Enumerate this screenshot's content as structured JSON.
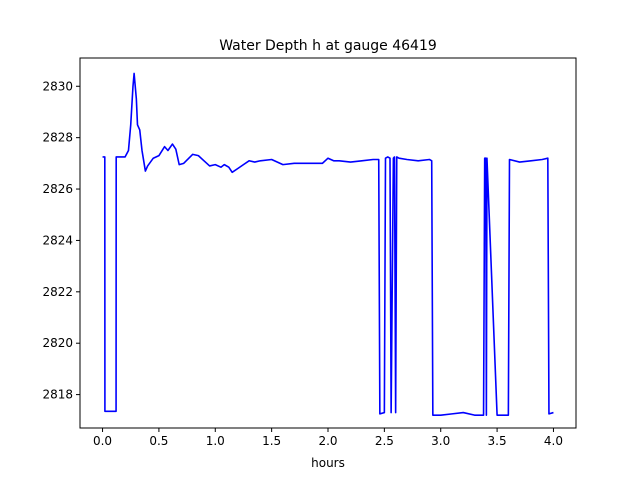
{
  "chart_data": {
    "type": "line",
    "title": "Water Depth h at gauge 46419",
    "xlabel": "hours",
    "ylabel": "",
    "xlim": [
      -0.2,
      4.2
    ],
    "ylim": [
      2816.7,
      2831.1
    ],
    "xticks": [
      0.0,
      0.5,
      1.0,
      1.5,
      2.0,
      2.5,
      3.0,
      3.5,
      4.0
    ],
    "xtick_labels": [
      "0.0",
      "0.5",
      "1.0",
      "1.5",
      "2.0",
      "2.5",
      "3.0",
      "3.5",
      "4.0"
    ],
    "yticks": [
      2818,
      2820,
      2822,
      2824,
      2826,
      2828,
      2830
    ],
    "ytick_labels": [
      "2818",
      "2820",
      "2822",
      "2824",
      "2826",
      "2828",
      "2830"
    ],
    "grid": false,
    "legend": "none",
    "series": [
      {
        "color": "#0000ff",
        "x": [
          0.0,
          0.02,
          0.021,
          0.12,
          0.121,
          0.2,
          0.23,
          0.25,
          0.27,
          0.28,
          0.3,
          0.31,
          0.33,
          0.35,
          0.38,
          0.4,
          0.45,
          0.5,
          0.55,
          0.58,
          0.62,
          0.65,
          0.68,
          0.72,
          0.8,
          0.85,
          0.9,
          0.95,
          1.0,
          1.05,
          1.08,
          1.12,
          1.15,
          1.2,
          1.25,
          1.3,
          1.35,
          1.4,
          1.5,
          1.6,
          1.7,
          1.8,
          1.9,
          1.95,
          2.0,
          2.05,
          2.1,
          2.2,
          2.3,
          2.4,
          2.45,
          2.46,
          2.5,
          2.51,
          2.53,
          2.55,
          2.56,
          2.58,
          2.59,
          2.6,
          2.61,
          2.63,
          2.7,
          2.8,
          2.9,
          2.92,
          2.93,
          3.0,
          3.1,
          3.2,
          3.3,
          3.38,
          3.39,
          3.4,
          3.405,
          3.41,
          3.5,
          3.6,
          3.61,
          3.7,
          3.8,
          3.9,
          3.95,
          3.96,
          4.0
        ],
        "y": [
          2827.25,
          2827.25,
          2817.35,
          2817.35,
          2827.25,
          2827.25,
          2827.5,
          2828.5,
          2830.0,
          2830.5,
          2829.5,
          2828.5,
          2828.3,
          2827.5,
          2826.7,
          2826.9,
          2827.2,
          2827.3,
          2827.65,
          2827.5,
          2827.75,
          2827.55,
          2826.95,
          2827.0,
          2827.35,
          2827.3,
          2827.1,
          2826.9,
          2826.95,
          2826.85,
          2826.95,
          2826.85,
          2826.65,
          2826.8,
          2826.95,
          2827.1,
          2827.05,
          2827.1,
          2827.15,
          2826.95,
          2827.0,
          2827.0,
          2827.0,
          2827.0,
          2827.2,
          2827.1,
          2827.1,
          2827.05,
          2827.1,
          2827.15,
          2827.15,
          2817.25,
          2817.3,
          2827.2,
          2827.25,
          2827.2,
          2817.3,
          2827.2,
          2827.25,
          2817.3,
          2827.25,
          2827.2,
          2827.15,
          2827.1,
          2827.15,
          2827.1,
          2817.2,
          2817.2,
          2817.25,
          2817.3,
          2817.2,
          2817.2,
          2827.2,
          2827.2,
          2817.2,
          2827.2,
          2817.2,
          2817.2,
          2827.15,
          2827.05,
          2827.1,
          2827.15,
          2827.2,
          2817.25,
          2817.3
        ]
      }
    ]
  }
}
